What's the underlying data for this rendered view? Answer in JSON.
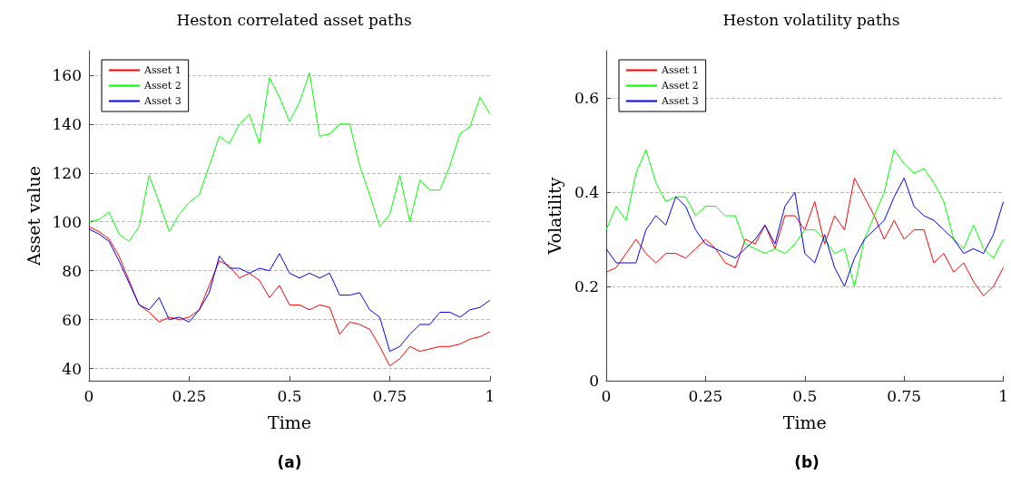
{
  "chart_data": [
    {
      "type": "line",
      "title": "Heston correlated asset paths",
      "xlabel": "Time",
      "ylabel": "Asset value",
      "annotations": [
        "(a)"
      ],
      "x": [
        0,
        0.025,
        0.05,
        0.075,
        0.1,
        0.125,
        0.15,
        0.175,
        0.2,
        0.225,
        0.25,
        0.275,
        0.3,
        0.325,
        0.35,
        0.375,
        0.4,
        0.425,
        0.45,
        0.475,
        0.5,
        0.525,
        0.55,
        0.575,
        0.6,
        0.625,
        0.65,
        0.675,
        0.7,
        0.725,
        0.75,
        0.775,
        0.8,
        0.825,
        0.85,
        0.875,
        0.9,
        0.925,
        0.95,
        0.975,
        1
      ],
      "series": [
        {
          "name": "Asset 1",
          "color": "#ff0000",
          "values": [
            98,
            96,
            93,
            86,
            76,
            66,
            63,
            59,
            61,
            60,
            61,
            64,
            74,
            84,
            82,
            77,
            79,
            76,
            69,
            74,
            66,
            66,
            64,
            66,
            65,
            54,
            59,
            58,
            56,
            49,
            41,
            44,
            49,
            47,
            48,
            49,
            49,
            50,
            52,
            53,
            55
          ]
        },
        {
          "name": "Asset 2",
          "color": "#00ff00",
          "values": [
            100,
            101,
            104,
            95,
            92,
            98,
            119,
            108,
            96,
            103,
            108,
            111,
            123,
            135,
            132,
            140,
            144,
            132,
            159,
            151,
            141,
            149,
            161,
            135,
            136,
            140,
            140,
            123,
            111,
            98,
            103,
            119,
            100,
            117,
            113,
            113,
            123,
            136,
            139,
            151,
            144
          ]
        },
        {
          "name": "Asset 3",
          "color": "#0000ff",
          "values": [
            97,
            95,
            92,
            84,
            75,
            66,
            64,
            69,
            60,
            61,
            59,
            64,
            71,
            86,
            81,
            81,
            79,
            81,
            80,
            87,
            79,
            77,
            79,
            77,
            79,
            70,
            70,
            71,
            64,
            61,
            47,
            49,
            54,
            58,
            58,
            63,
            63,
            61,
            64,
            65,
            68
          ]
        }
      ],
      "xlim": [
        0,
        1
      ],
      "xticks": [
        0,
        0.25,
        0.5,
        0.75,
        1
      ],
      "ylim": [
        35,
        170
      ],
      "yticks": [
        40,
        60,
        80,
        100,
        120,
        140,
        160
      ],
      "grid": "y",
      "legend": "top left",
      "marker": "none",
      "line_style": "solid"
    },
    {
      "type": "line",
      "title": "Heston volatility paths",
      "xlabel": "Time",
      "ylabel": "Volatility",
      "annotations": [
        "(b)"
      ],
      "x": [
        0,
        0.025,
        0.05,
        0.075,
        0.1,
        0.125,
        0.15,
        0.175,
        0.2,
        0.225,
        0.25,
        0.275,
        0.3,
        0.325,
        0.35,
        0.375,
        0.4,
        0.425,
        0.45,
        0.475,
        0.5,
        0.525,
        0.55,
        0.575,
        0.6,
        0.625,
        0.65,
        0.675,
        0.7,
        0.725,
        0.75,
        0.775,
        0.8,
        0.825,
        0.85,
        0.875,
        0.9,
        0.925,
        0.95,
        0.975,
        1
      ],
      "series": [
        {
          "name": "Asset 1",
          "color": "#ff0000",
          "values": [
            0.23,
            0.24,
            0.27,
            0.3,
            0.27,
            0.25,
            0.27,
            0.27,
            0.26,
            0.28,
            0.3,
            0.28,
            0.25,
            0.24,
            0.3,
            0.29,
            0.33,
            0.28,
            0.35,
            0.35,
            0.32,
            0.38,
            0.29,
            0.35,
            0.32,
            0.43,
            0.39,
            0.35,
            0.3,
            0.34,
            0.3,
            0.32,
            0.32,
            0.25,
            0.27,
            0.23,
            0.25,
            0.21,
            0.18,
            0.2,
            0.24
          ]
        },
        {
          "name": "Asset 2",
          "color": "#00ff00",
          "values": [
            0.32,
            0.37,
            0.34,
            0.44,
            0.49,
            0.42,
            0.38,
            0.39,
            0.39,
            0.35,
            0.37,
            0.37,
            0.35,
            0.35,
            0.29,
            0.28,
            0.27,
            0.28,
            0.27,
            0.29,
            0.32,
            0.32,
            0.3,
            0.27,
            0.28,
            0.2,
            0.3,
            0.35,
            0.4,
            0.49,
            0.46,
            0.44,
            0.45,
            0.42,
            0.38,
            0.3,
            0.28,
            0.33,
            0.28,
            0.26,
            0.3
          ]
        },
        {
          "name": "Asset 3",
          "color": "#0000ff",
          "values": [
            0.28,
            0.25,
            0.25,
            0.25,
            0.32,
            0.35,
            0.33,
            0.39,
            0.37,
            0.32,
            0.29,
            0.28,
            0.27,
            0.26,
            0.28,
            0.3,
            0.33,
            0.29,
            0.37,
            0.4,
            0.27,
            0.25,
            0.31,
            0.24,
            0.2,
            0.26,
            0.3,
            0.32,
            0.34,
            0.39,
            0.43,
            0.37,
            0.35,
            0.34,
            0.32,
            0.3,
            0.27,
            0.28,
            0.27,
            0.31,
            0.38
          ]
        }
      ],
      "xlim": [
        0,
        1
      ],
      "xticks": [
        0,
        0.25,
        0.5,
        0.75,
        1
      ],
      "ylim": [
        0,
        0.7
      ],
      "yticks": [
        0,
        0.2,
        0.4,
        0.6
      ],
      "grid": "y",
      "legend": "top left",
      "marker": "none",
      "line_style": "solid"
    }
  ]
}
